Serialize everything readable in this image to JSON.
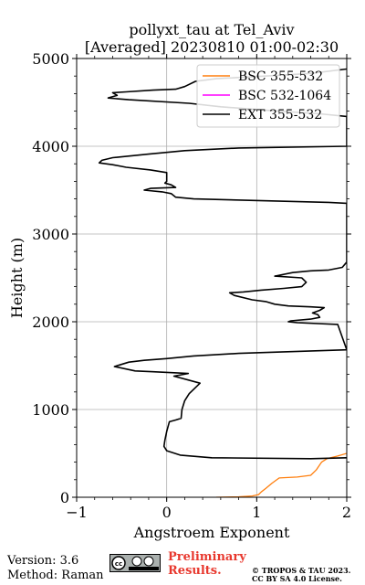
{
  "chart_data": {
    "type": "line",
    "title": "pollyxt_tau at Tel_Aviv",
    "subtitle": "[Averaged] 20230810 01:00-02:30",
    "xlabel": "Angstroem Exponent",
    "ylabel": "Height (m)",
    "xlim": [
      -1,
      2
    ],
    "ylim": [
      0,
      5000
    ],
    "xticks": [
      -1,
      0,
      1,
      2
    ],
    "yticks": [
      0,
      1000,
      2000,
      3000,
      4000,
      5000
    ],
    "xtick_labels": [
      "−1",
      "0",
      "1",
      "2"
    ],
    "ytick_labels": [
      "0",
      "1000",
      "2000",
      "3000",
      "4000",
      "5000"
    ],
    "grid": true,
    "legend_position": "top-right",
    "series": [
      {
        "name": "BSC 355-532",
        "color": "#ff7f0e",
        "points": [
          [
            0.55,
            0
          ],
          [
            0.8,
            5
          ],
          [
            0.95,
            15
          ],
          [
            1.02,
            30
          ],
          [
            1.05,
            60
          ],
          [
            1.1,
            100
          ],
          [
            1.17,
            160
          ],
          [
            1.25,
            220
          ],
          [
            1.45,
            230
          ],
          [
            1.6,
            250
          ],
          [
            1.66,
            310
          ],
          [
            1.72,
            400
          ],
          [
            1.78,
            440
          ],
          [
            1.9,
            470
          ],
          [
            2.0,
            500
          ]
        ]
      },
      {
        "name": "BSC 532-1064",
        "color": "#ff00ff",
        "points": []
      },
      {
        "name": "EXT 355-532",
        "color": "#000000",
        "points": [
          [
            2.0,
            450
          ],
          [
            1.6,
            440
          ],
          [
            0.5,
            450
          ],
          [
            0.15,
            480
          ],
          [
            0.0,
            530
          ],
          [
            -0.03,
            580
          ],
          [
            -0.02,
            650
          ],
          [
            0.0,
            750
          ],
          [
            0.03,
            860
          ],
          [
            0.1,
            880
          ],
          [
            0.16,
            900
          ],
          [
            0.17,
            1000
          ],
          [
            0.2,
            1100
          ],
          [
            0.25,
            1180
          ],
          [
            0.37,
            1300
          ],
          [
            0.08,
            1380
          ],
          [
            0.24,
            1410
          ],
          [
            -0.15,
            1430
          ],
          [
            -0.35,
            1440
          ],
          [
            -0.58,
            1490
          ],
          [
            -0.42,
            1540
          ],
          [
            -0.25,
            1560
          ],
          [
            0.0,
            1580
          ],
          [
            0.3,
            1610
          ],
          [
            0.8,
            1640
          ],
          [
            2.0,
            1680
          ],
          [
            1.9,
            1970
          ],
          [
            1.45,
            1990
          ],
          [
            1.35,
            2000
          ],
          [
            1.38,
            2010
          ],
          [
            1.6,
            2030
          ],
          [
            1.7,
            2050
          ],
          [
            1.68,
            2080
          ],
          [
            1.62,
            2100
          ],
          [
            1.7,
            2130
          ],
          [
            1.75,
            2160
          ],
          [
            1.6,
            2170
          ],
          [
            1.35,
            2180
          ],
          [
            1.2,
            2200
          ],
          [
            1.1,
            2230
          ],
          [
            0.95,
            2250
          ],
          [
            0.75,
            2300
          ],
          [
            0.7,
            2330
          ],
          [
            0.85,
            2340
          ],
          [
            1.05,
            2360
          ],
          [
            1.3,
            2380
          ],
          [
            1.5,
            2400
          ],
          [
            1.55,
            2450
          ],
          [
            1.5,
            2500
          ],
          [
            1.2,
            2520
          ],
          [
            1.4,
            2560
          ],
          [
            1.6,
            2580
          ],
          [
            1.8,
            2590
          ],
          [
            1.95,
            2620
          ],
          [
            2.0,
            2680
          ],
          [
            2.0,
            3350
          ],
          [
            1.8,
            3360
          ],
          [
            0.3,
            3400
          ],
          [
            0.1,
            3420
          ],
          [
            0.05,
            3460
          ],
          [
            -0.05,
            3480
          ],
          [
            -0.25,
            3500
          ],
          [
            -0.18,
            3520
          ],
          [
            0.1,
            3530
          ],
          [
            0.05,
            3560
          ],
          [
            -0.02,
            3580
          ],
          [
            0.0,
            3600
          ],
          [
            0.0,
            3700
          ],
          [
            -0.18,
            3730
          ],
          [
            -0.45,
            3760
          ],
          [
            -0.6,
            3790
          ],
          [
            -0.75,
            3810
          ],
          [
            -0.72,
            3840
          ],
          [
            -0.6,
            3870
          ],
          [
            -0.2,
            3910
          ],
          [
            0.2,
            3950
          ],
          [
            0.8,
            3980
          ],
          [
            2.0,
            4000
          ],
          [
            2.0,
            4340
          ],
          [
            1.7,
            4370
          ],
          [
            1.1,
            4410
          ],
          [
            0.6,
            4450
          ],
          [
            0.25,
            4490
          ],
          [
            -0.42,
            4530
          ],
          [
            -0.65,
            4550
          ],
          [
            -0.55,
            4580
          ],
          [
            -0.6,
            4610
          ],
          [
            -0.45,
            4620
          ],
          [
            -0.15,
            4640
          ],
          [
            0.1,
            4650
          ],
          [
            0.2,
            4680
          ],
          [
            0.32,
            4740
          ],
          [
            0.55,
            4770
          ],
          [
            1.1,
            4800
          ],
          [
            1.6,
            4830
          ],
          [
            2.0,
            4880
          ]
        ]
      }
    ]
  },
  "footer": {
    "version": "Version: 3.6",
    "method": "Method: Raman",
    "preliminary": [
      "Preliminary",
      "Results."
    ],
    "copyright": [
      "© TROPOS & TAU 2023.",
      "CC BY SA 4.0 License."
    ],
    "license_logo": "cc-by-sa-logo"
  }
}
